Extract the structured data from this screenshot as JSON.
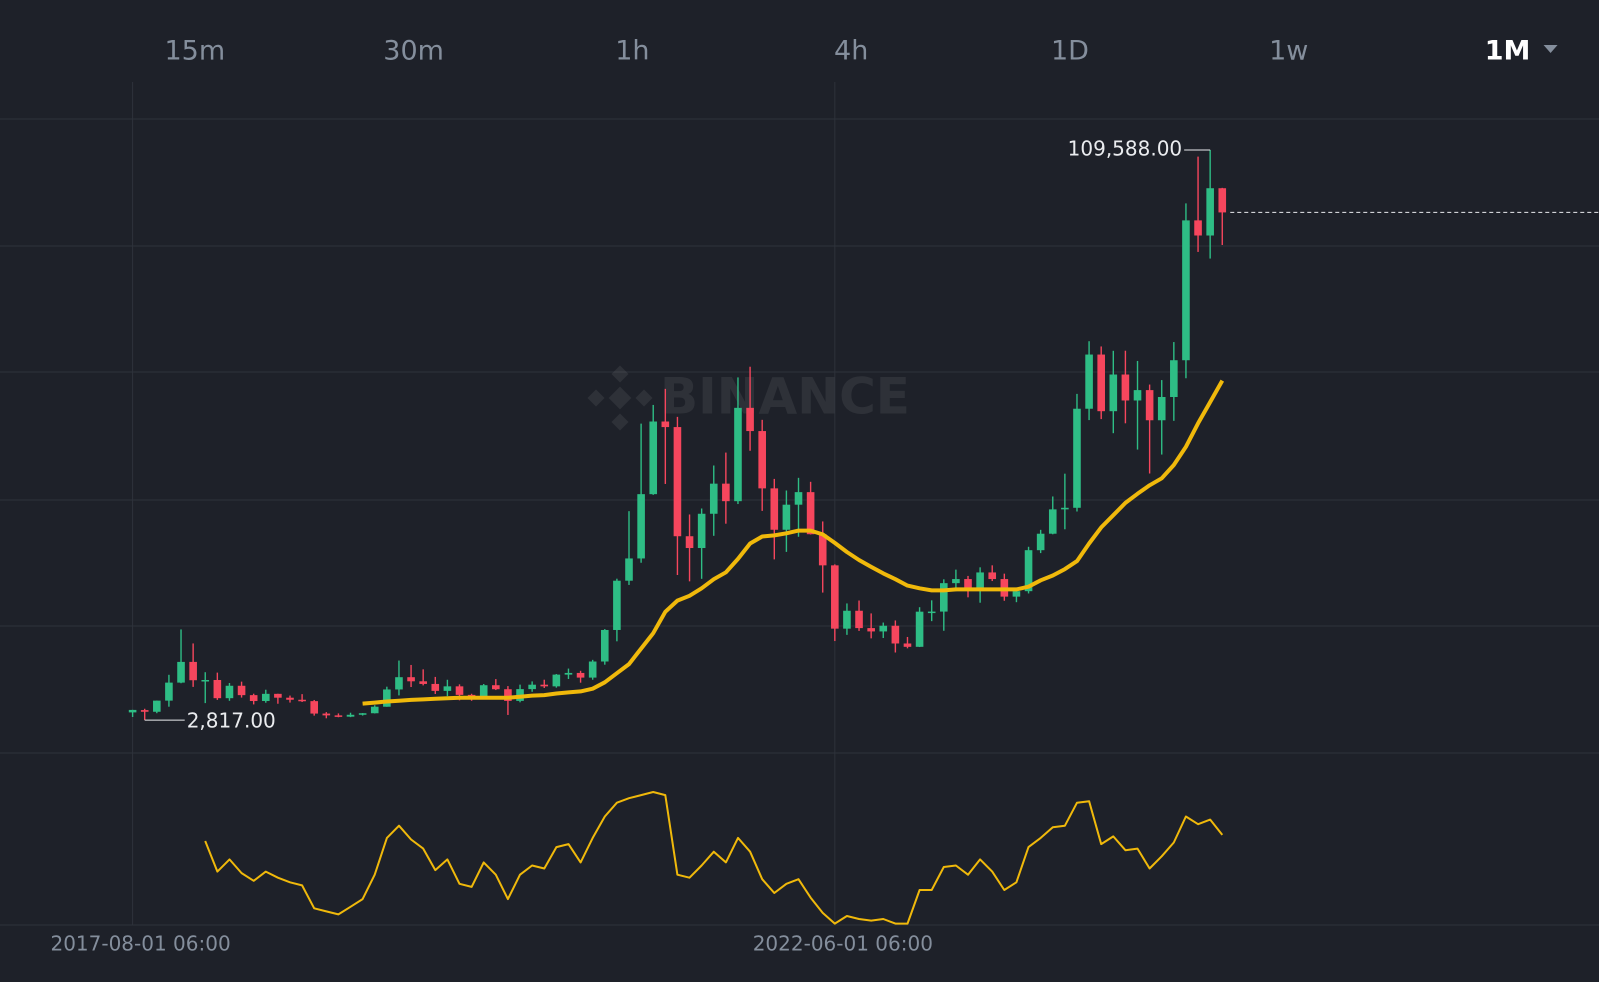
{
  "timeframes": [
    "15m",
    "30m",
    "1h",
    "4h",
    "1D",
    "1w",
    "1M"
  ],
  "active_timeframe": 6,
  "watermark": "BINANCE",
  "chart_data": {
    "type": "candlestick",
    "categories": [
      "2017-08-01 06:00",
      null,
      null,
      null,
      null,
      null,
      null,
      null,
      null,
      null,
      null,
      null,
      null,
      null,
      null,
      null,
      null,
      null,
      null,
      null,
      null,
      null,
      null,
      null,
      null,
      null,
      null,
      null,
      null,
      null,
      null,
      null,
      null,
      null,
      null,
      null,
      null,
      null,
      null,
      null,
      null,
      null,
      null,
      null,
      null,
      null,
      null,
      null,
      null,
      null,
      null,
      null,
      null,
      null,
      null,
      null,
      null,
      null,
      "2022-06-01 06:00",
      null,
      null,
      null,
      null,
      null,
      null,
      null,
      null,
      null,
      null,
      null,
      null,
      null,
      null,
      null,
      null,
      null,
      null,
      null,
      null,
      null,
      null,
      null,
      null,
      null,
      null,
      null,
      null,
      null,
      null,
      null,
      null
    ],
    "open": [
      4261,
      4689,
      4378,
      6463,
      9838,
      13716,
      10285,
      10326,
      6923,
      9246,
      7494,
      6391,
      7735,
      7011,
      6626,
      6370,
      4041,
      3701,
      3458,
      3813,
      4102,
      5321,
      8555,
      10855,
      10085,
      9588,
      8289,
      9140,
      7541,
      7195,
      9351,
      8600,
      6412,
      8620,
      9448,
      9138,
      11335,
      11649,
      10776,
      13791,
      19695,
      28923,
      33092,
      45134,
      58740,
      57697,
      37254,
      35045,
      41461,
      47100,
      43820,
      61300,
      56950,
      46217,
      38466,
      43160,
      45511,
      37631,
      31801,
      19942,
      23297,
      20049,
      19423,
      20490,
      17165,
      16542,
      23125,
      23141,
      28466,
      29233,
      27211,
      30472,
      29232,
      25941,
      26963,
      34640,
      37724,
      42284,
      42580,
      61131,
      71280,
      60672,
      67540,
      62678,
      64620,
      58974,
      63328,
      70216,
      96408,
      93576,
      102430
    ],
    "high": [
      4745,
      4939,
      6470,
      11300,
      19798,
      17176,
      11786,
      11710,
      9765,
      10020,
      7760,
      8507,
      7750,
      7410,
      7680,
      6586,
      4313,
      4069,
      4198,
      4140,
      5600,
      9074,
      13970,
      13147,
      12325,
      10905,
      10370,
      9513,
      7750,
      9578,
      10500,
      9188,
      9460,
      10067,
      10380,
      11444,
      12468,
      12050,
      14100,
      19863,
      29300,
      41950,
      58352,
      61844,
      64854,
      59600,
      41330,
      42448,
      50500,
      52920,
      67000,
      69000,
      59053,
      47990,
      45821,
      48189,
      47444,
      40023,
      31982,
      24668,
      25211,
      22799,
      21085,
      21480,
      18387,
      23960,
      25250,
      29185,
      31000,
      29820,
      31431,
      31804,
      30244,
      27488,
      35280,
      38450,
      44700,
      48970,
      63913,
      73777,
      72797,
      71979,
      71997,
      70080,
      65660,
      66500,
      73620,
      99588,
      108353,
      109588,
      102500
    ],
    "low": [
      3400,
      2817,
      4110,
      5325,
      9722,
      9035,
      6000,
      6600,
      6430,
      7032,
      5755,
      6071,
      5880,
      6100,
      6205,
      3652,
      3156,
      3349,
      3373,
      3670,
      4067,
      5320,
      7444,
      9010,
      9320,
      7710,
      7300,
      6515,
      6435,
      6871,
      8445,
      3782,
      6150,
      8117,
      8833,
      8893,
      10518,
      9825,
      10374,
      13195,
      17572,
      28130,
      32296,
      45000,
      47044,
      30000,
      28805,
      29278,
      37332,
      39600,
      43283,
      53256,
      42000,
      32917,
      34322,
      37155,
      37578,
      26700,
      17622,
      18781,
      19520,
      18125,
      18190,
      15476,
      16256,
      16500,
      21351,
      19549,
      26943,
      25811,
      24800,
      28861,
      25166,
      24901,
      26538,
      34097,
      37615,
      38555,
      41884,
      59005,
      59191,
      56552,
      58402,
      53485,
      49000,
      52550,
      58867,
      66835,
      90500,
      89256,
      91800
    ],
    "close": [
      4724,
      4378,
      6463,
      9838,
      13716,
      10285,
      10326,
      6923,
      9246,
      7494,
      6391,
      7735,
      7011,
      6626,
      6370,
      4041,
      3701,
      3458,
      3813,
      4102,
      5321,
      8555,
      10855,
      10085,
      9588,
      8289,
      9140,
      7541,
      7195,
      9351,
      8600,
      6412,
      8620,
      9448,
      9138,
      11335,
      11649,
      10776,
      13791,
      19695,
      28923,
      33092,
      45134,
      58740,
      57697,
      37254,
      35045,
      41461,
      47100,
      43820,
      61300,
      56950,
      46217,
      38466,
      43160,
      45511,
      37631,
      31801,
      19942,
      23297,
      20049,
      19423,
      20490,
      17165,
      16542,
      23125,
      23141,
      28466,
      29233,
      27211,
      30472,
      29232,
      25941,
      26963,
      34640,
      37724,
      42284,
      42580,
      61131,
      71280,
      60672,
      67540,
      62678,
      64620,
      58974,
      63328,
      70216,
      96408,
      93576,
      102430,
      97900
    ],
    "up_color": "#2ebd85",
    "down_color": "#f6465d",
    "ylim": [
      -3300,
      122400
    ],
    "ma": {
      "color": "#f0b90b",
      "values": [
        null,
        null,
        null,
        null,
        null,
        null,
        null,
        null,
        null,
        null,
        null,
        null,
        null,
        null,
        null,
        null,
        null,
        null,
        null,
        5900,
        6100,
        6300,
        6450,
        6600,
        6700,
        6800,
        6900,
        7000,
        7000,
        7000,
        7000,
        7000,
        7200,
        7400,
        7500,
        7800,
        8000,
        8200,
        8700,
        9900,
        11600,
        13300,
        16200,
        19100,
        23100,
        25200,
        26100,
        27500,
        29200,
        30500,
        33000,
        35900,
        37200,
        37400,
        37800,
        38300,
        38300,
        37600,
        36000,
        34300,
        32800,
        31500,
        30300,
        29200,
        28000,
        27500,
        27100,
        27100,
        27300,
        27300,
        27300,
        27300,
        27300,
        27300,
        27800,
        29000,
        29900,
        31100,
        32600,
        35900,
        38900,
        41200,
        43500,
        45200,
        46800,
        48100,
        50600,
        54000,
        58400,
        62400,
        66400
      ]
    },
    "indicator": {
      "color": "#f0b90b",
      "ylim": [
        0,
        100
      ],
      "values": [
        null,
        null,
        null,
        null,
        null,
        null,
        57,
        37,
        45,
        36,
        31,
        37,
        33,
        30,
        28,
        13,
        11,
        9,
        14,
        19,
        35,
        59,
        67,
        58,
        52,
        38,
        45,
        29,
        27,
        43,
        35,
        19,
        35,
        41,
        39,
        53,
        55,
        43,
        59,
        73,
        82,
        85,
        87,
        89,
        87,
        35,
        33,
        41,
        50,
        43,
        59,
        50,
        32,
        23,
        29,
        32,
        20,
        10,
        3,
        8,
        6,
        5,
        6,
        3,
        3,
        25,
        25,
        40,
        41,
        35,
        45,
        37,
        25,
        30,
        53,
        59,
        66,
        67,
        82,
        83,
        55,
        60,
        51,
        52,
        39,
        47,
        56,
        73,
        68,
        71,
        61
      ]
    },
    "high_label": {
      "text": "109,588.00",
      "value": 109588
    },
    "low_label": {
      "text": "2,817.00",
      "value": 2817
    }
  }
}
